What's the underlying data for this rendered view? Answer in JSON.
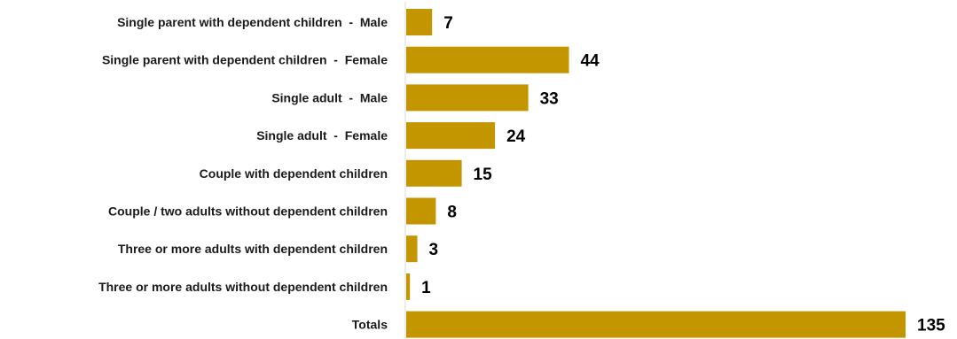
{
  "chart_data": {
    "type": "bar",
    "orientation": "horizontal",
    "categories": [
      "Single parent with dependent children  -  Male",
      "Single parent with dependent children  -  Female",
      "Single adult  -  Male",
      "Single adult  -  Female",
      "Couple with dependent children",
      "Couple / two adults without dependent children",
      "Three or more adults with dependent children",
      "Three or more adults without dependent children",
      "Totals"
    ],
    "values": [
      7,
      44,
      33,
      24,
      15,
      8,
      3,
      1,
      135
    ],
    "xlim": [
      0,
      140
    ],
    "grid": false,
    "legend": "none",
    "bar_color": "#c39600",
    "axis_color": "#d9d9d9"
  }
}
